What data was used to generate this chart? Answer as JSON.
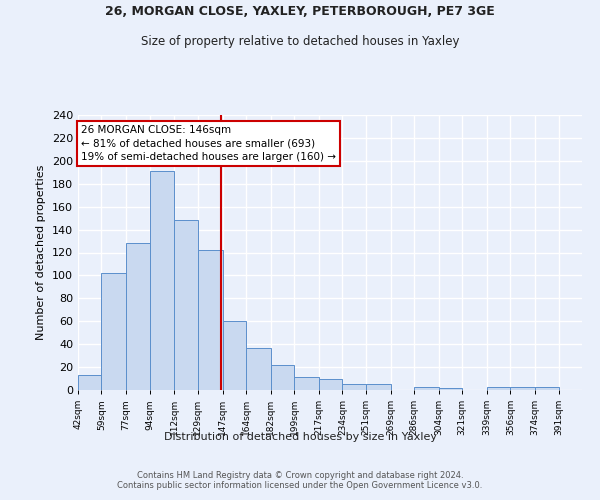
{
  "title1": "26, MORGAN CLOSE, YAXLEY, PETERBOROUGH, PE7 3GE",
  "title2": "Size of property relative to detached houses in Yaxley",
  "xlabel": "Distribution of detached houses by size in Yaxley",
  "ylabel": "Number of detached properties",
  "bar_values": [
    13,
    102,
    128,
    191,
    148,
    122,
    60,
    37,
    22,
    11,
    10,
    5,
    5,
    0,
    3,
    2,
    0,
    3,
    3,
    3
  ],
  "bar_color": "#c9d9f0",
  "bar_edge_color": "#5b8fcc",
  "background_color": "#eaf0fb",
  "grid_color": "#ffffff",
  "vline_x": 146,
  "vline_color": "#cc0000",
  "annotation_text": "26 MORGAN CLOSE: 146sqm\n← 81% of detached houses are smaller (693)\n19% of semi-detached houses are larger (160) →",
  "annotation_box_color": "#ffffff",
  "annotation_box_edge": "#cc0000",
  "footer_text": "Contains HM Land Registry data © Crown copyright and database right 2024.\nContains public sector information licensed under the Open Government Licence v3.0.",
  "bin_edges": [
    42,
    59,
    77,
    94,
    112,
    129,
    147,
    164,
    182,
    199,
    217,
    234,
    251,
    269,
    286,
    304,
    321,
    339,
    356,
    374,
    391
  ],
  "tick_labels": [
    "42sqm",
    "59sqm",
    "77sqm",
    "94sqm",
    "112sqm",
    "129sqm",
    "147sqm",
    "164sqm",
    "182sqm",
    "199sqm",
    "217sqm",
    "234sqm",
    "251sqm",
    "269sqm",
    "286sqm",
    "304sqm",
    "321sqm",
    "339sqm",
    "356sqm",
    "374sqm",
    "391sqm"
  ],
  "ylim": [
    0,
    240
  ],
  "yticks": [
    0,
    20,
    40,
    60,
    80,
    100,
    120,
    140,
    160,
    180,
    200,
    220,
    240
  ]
}
